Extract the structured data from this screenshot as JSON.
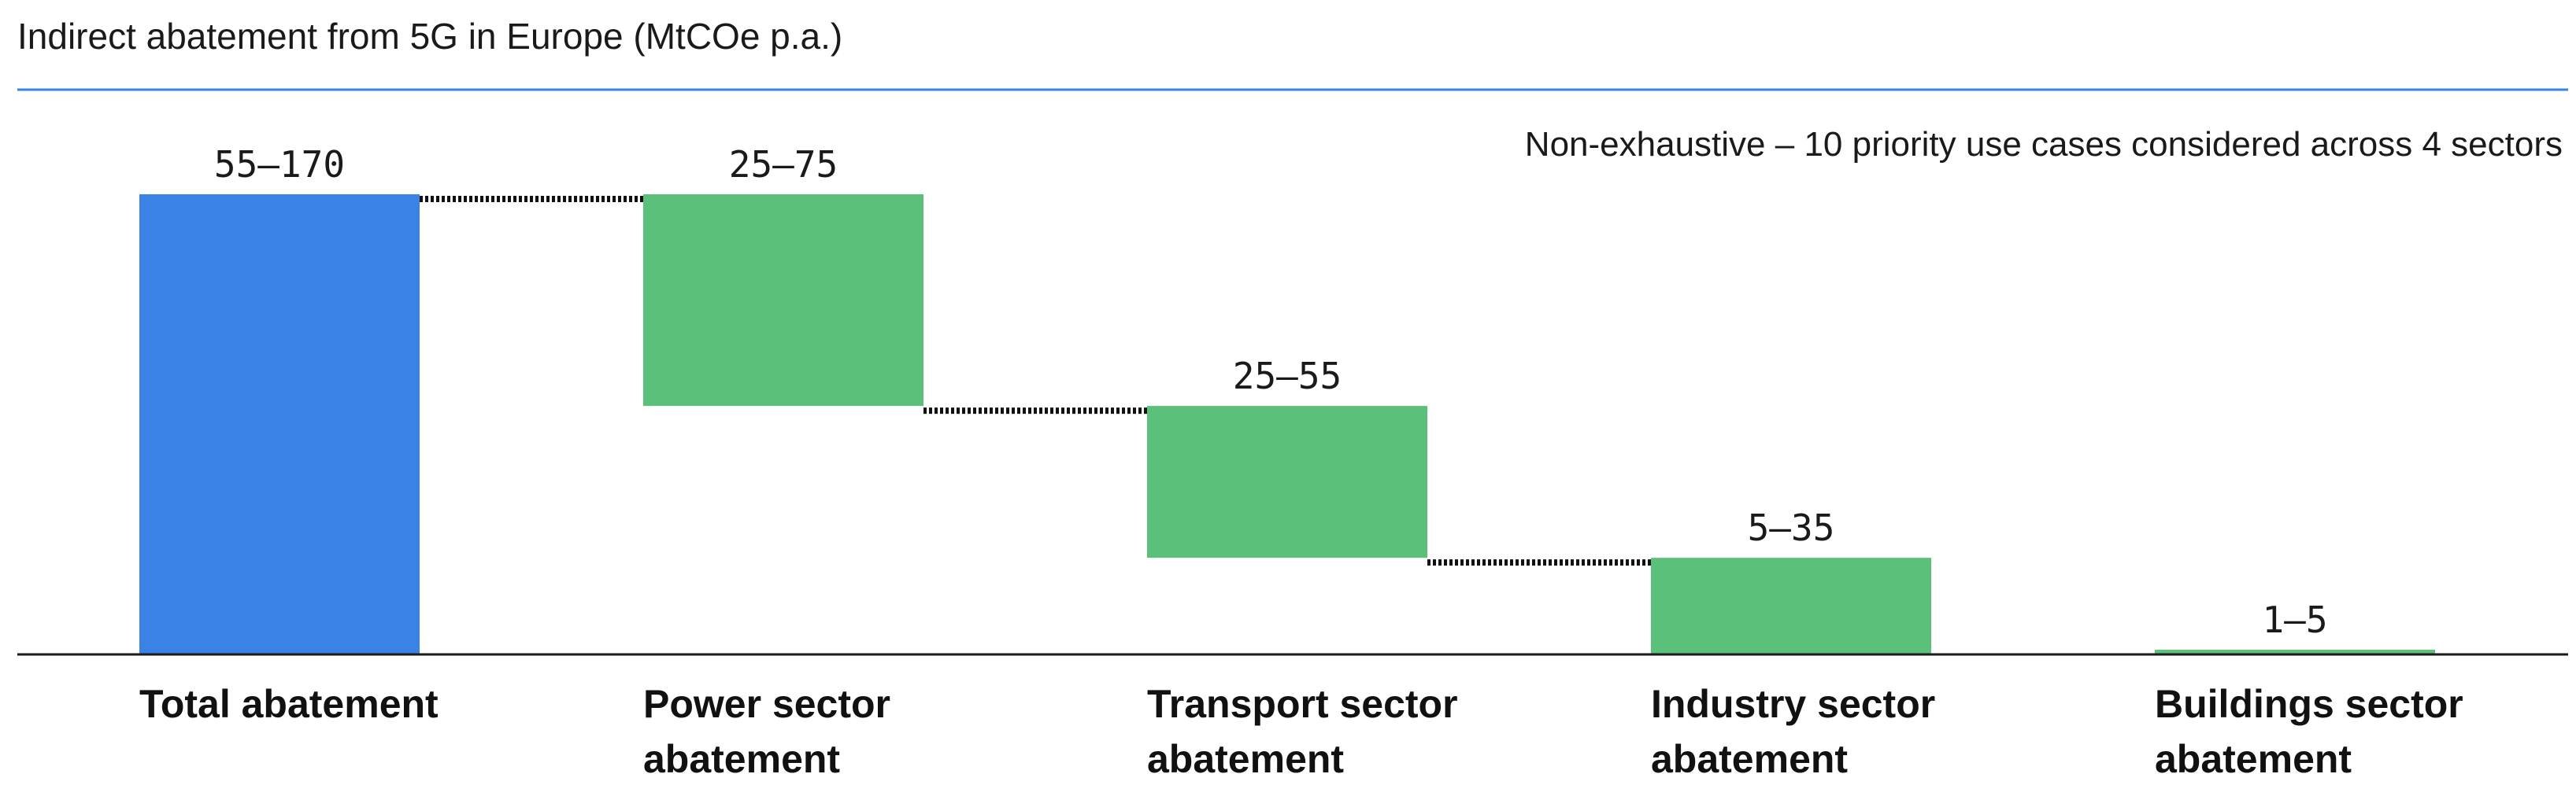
{
  "chart_data": {
    "type": "bar",
    "subtype": "waterfall",
    "title": "Indirect abatement from 5G in Europe (MtCOe p.a.)",
    "note": "Non-exhaustive – 10 priority use cases considered across 4 sectors",
    "categories": [
      [
        "Total abatement"
      ],
      [
        "Power sector",
        "abatement"
      ],
      [
        "Transport sector",
        "abatement"
      ],
      [
        "Industry sector",
        "abatement"
      ],
      [
        "Buildings sector",
        "abatement"
      ]
    ],
    "value_labels": [
      "55–170",
      "25–75",
      "25–55",
      "5–35",
      "1–5"
    ],
    "bars": [
      {
        "start": 0,
        "end": 100,
        "kind": "total"
      },
      {
        "start": 100,
        "end": 54,
        "kind": "decrement"
      },
      {
        "start": 54,
        "end": 21,
        "kind": "decrement"
      },
      {
        "start": 21,
        "end": 0,
        "kind": "decrement"
      },
      {
        "start": 1,
        "end": 0,
        "kind": "decrement"
      }
    ],
    "connectors": true,
    "colors": {
      "total": "#3a82e6",
      "decrement": "#5bc07a",
      "title_rule": "#3a82e6",
      "baseline": "#1a1a1a",
      "connector": "#111111"
    }
  }
}
